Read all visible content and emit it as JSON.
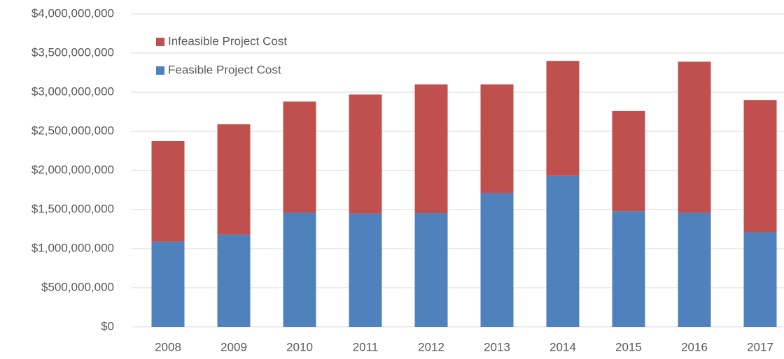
{
  "chart_data": {
    "type": "stacked_bar",
    "categories": [
      "2008",
      "2009",
      "2010",
      "2011",
      "2012",
      "2013",
      "2014",
      "2015",
      "2016",
      "2017"
    ],
    "series": [
      {
        "name": "Feasible Project Cost",
        "color": "#4f81bd",
        "values": [
          1090000000,
          1180000000,
          1460000000,
          1450000000,
          1455000000,
          1710000000,
          1930000000,
          1480000000,
          1460000000,
          1210000000
        ]
      },
      {
        "name": "Infeasible Project Cost",
        "color": "#c0504d",
        "values": [
          1285000000,
          1410000000,
          1420000000,
          1520000000,
          1645000000,
          1390000000,
          1470000000,
          1280000000,
          1930000000,
          1690000000
        ]
      }
    ],
    "ylim": [
      0,
      4000000000
    ],
    "yticks": [
      {
        "value": 0,
        "label": "$0"
      },
      {
        "value": 500000000,
        "label": "$500,000,000"
      },
      {
        "value": 1000000000,
        "label": "$1,000,000,000"
      },
      {
        "value": 1500000000,
        "label": "$1,500,000,000"
      },
      {
        "value": 2000000000,
        "label": "$2,000,000,000"
      },
      {
        "value": 2500000000,
        "label": "$2,500,000,000"
      },
      {
        "value": 3000000000,
        "label": "$3,000,000,000"
      },
      {
        "value": 3500000000,
        "label": "$3,500,000,000"
      },
      {
        "value": 4000000000,
        "label": "$4,000,000,000"
      }
    ],
    "grid": true,
    "legend": "upper-left"
  }
}
